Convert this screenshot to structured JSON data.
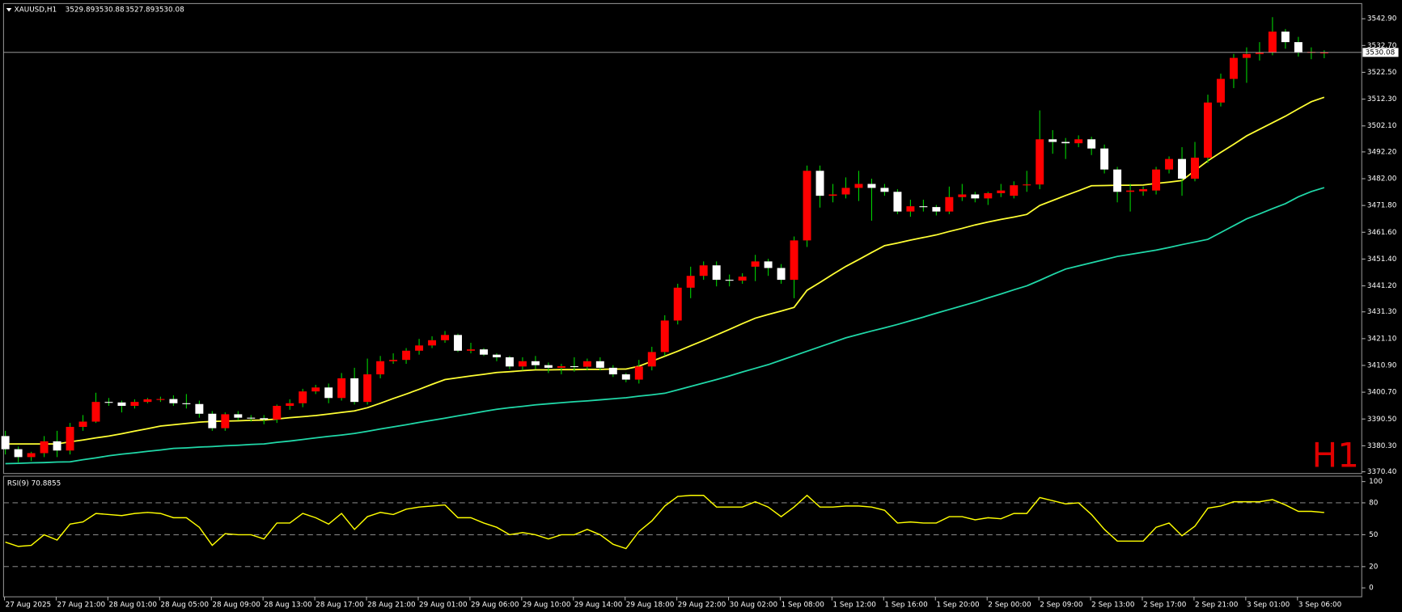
{
  "chart_data": {
    "type": "candlestick",
    "symbol": "XAUUSD,H1",
    "timeframe_label": "H1",
    "categories": [
      "27 Aug 2025",
      null,
      null,
      null,
      "27 Aug 21:00",
      null,
      null,
      null,
      "28 Aug 01:00",
      null,
      null,
      null,
      "28 Aug 05:00",
      null,
      null,
      null,
      "28 Aug 09:00",
      null,
      null,
      null,
      "28 Aug 13:00",
      null,
      null,
      null,
      "28 Aug 17:00",
      null,
      null,
      null,
      "28 Aug 21:00",
      null,
      null,
      null,
      "29 Aug 01:00",
      null,
      null,
      null,
      "29 Aug 06:00",
      null,
      null,
      null,
      "29 Aug 10:00",
      null,
      null,
      null,
      "29 Aug 14:00",
      null,
      null,
      null,
      "29 Aug 18:00",
      null,
      null,
      null,
      "29 Aug 22:00",
      null,
      null,
      null,
      "30 Aug 02:00",
      null,
      null,
      null,
      "1 Sep 08:00",
      null,
      null,
      null,
      "1 Sep 12:00",
      null,
      null,
      null,
      "1 Sep 16:00",
      null,
      null,
      null,
      "1 Sep 20:00",
      null,
      null,
      null,
      "2 Sep 00:00",
      null,
      null,
      null,
      "2 Sep 09:00",
      null,
      null,
      null,
      "2 Sep 13:00",
      null,
      null,
      null,
      "2 Sep 17:00",
      null,
      null,
      null,
      "2 Sep 21:00",
      null,
      null,
      null,
      "3 Sep 01:00",
      null,
      null,
      null,
      "3 Sep 06:00",
      null,
      null
    ],
    "open": [
      3384,
      3379,
      3376,
      3377.5,
      3382,
      3378.5,
      3387.5,
      3389.5,
      3397,
      3396.8,
      3395.5,
      3397,
      3398,
      3398.1,
      3396.5,
      3396.2,
      3392.5,
      3387,
      3392.3,
      3391,
      3390.8,
      3390.3,
      3395.5,
      3396.5,
      3401,
      3402.5,
      3398.5,
      3406,
      3397,
      3407.5,
      3412.5,
      3413,
      3416.5,
      3418.5,
      3420.5,
      3422.5,
      3416.5,
      3417,
      3415,
      3414,
      3410.5,
      3412.5,
      3411,
      3410,
      3410.6,
      3410.4,
      3412.5,
      3410,
      3407.5,
      3405.5,
      3410.5,
      3416,
      3428,
      3440.5,
      3445,
      3449,
      3443.5,
      3443.2,
      3448.5,
      3450.5,
      3448,
      3443.5,
      3458.5,
      3485,
      3475.5,
      3476,
      3478.5,
      3480,
      3478.5,
      3477,
      3469.5,
      3471.5,
      3471.2,
      3469.5,
      3475,
      3476,
      3474.5,
      3476.5,
      3475.5,
      3479.5,
      3479.8,
      3497,
      3496,
      3495.5,
      3497,
      3493.5,
      3485.5,
      3477,
      3477.2,
      3477.5,
      3485.5,
      3489.5,
      3482,
      3490,
      3511,
      3520,
      3528,
      3529.5,
      3530,
      3538,
      3534,
      3530,
      3529.89
    ],
    "high": [
      3386,
      3380,
      3378,
      3384,
      3386,
      3389,
      3392,
      3400.5,
      3398.5,
      3397.5,
      3398,
      3398.5,
      3399,
      3399.5,
      3400,
      3397.5,
      3393.5,
      3393,
      3393.5,
      3392,
      3392,
      3396,
      3398,
      3402,
      3403.5,
      3404,
      3408,
      3410,
      3413.5,
      3414.5,
      3415.5,
      3417.5,
      3421,
      3422,
      3424,
      3423,
      3419.5,
      3417.5,
      3415.5,
      3414.5,
      3414,
      3414.5,
      3412,
      3411.5,
      3414,
      3413.5,
      3414,
      3411,
      3408,
      3413,
      3418,
      3430,
      3442,
      3448.5,
      3450.5,
      3450.5,
      3445.5,
      3446,
      3453,
      3451.5,
      3449.5,
      3460,
      3487,
      3487,
      3480,
      3482.5,
      3485,
      3482,
      3480,
      3478,
      3474,
      3474,
      3472,
      3479,
      3480,
      3477,
      3477,
      3480,
      3481,
      3485,
      3508,
      3500.5,
      3497.5,
      3498.5,
      3498,
      3495,
      3486.5,
      3480,
      3479,
      3486.5,
      3490.5,
      3494,
      3496,
      3514,
      3522,
      3529.5,
      3532,
      3534,
      3543.5,
      3539,
      3536,
      3532,
      3530.88
    ],
    "low": [
      3377,
      3374,
      3374.5,
      3376,
      3376,
      3377,
      3386,
      3389,
      3395.5,
      3393,
      3394.5,
      3396.5,
      3397,
      3395.5,
      3394.5,
      3391,
      3386,
      3386,
      3390,
      3389.5,
      3388.5,
      3389,
      3394,
      3395,
      3400,
      3396.5,
      3397.5,
      3396,
      3396,
      3406,
      3411.5,
      3411.5,
      3415,
      3417.5,
      3419.5,
      3416,
      3415.5,
      3414.5,
      3412.5,
      3409.5,
      3409,
      3409.5,
      3408,
      3407.5,
      3408.5,
      3409,
      3409,
      3406.5,
      3404.5,
      3404,
      3409,
      3414.5,
      3426.5,
      3436.5,
      3443.5,
      3441,
      3441,
      3442,
      3443,
      3445,
      3442,
      3436.5,
      3456,
      3471,
      3473,
      3474.5,
      3473.5,
      3466,
      3475.5,
      3468.5,
      3467.5,
      3469.5,
      3468,
      3468.5,
      3473.5,
      3473,
      3472,
      3475,
      3474.5,
      3477,
      3478,
      3491.5,
      3489.5,
      3494,
      3491,
      3484,
      3473,
      3469.5,
      3475.5,
      3476,
      3484,
      3475.5,
      3481,
      3488,
      3509.5,
      3516.5,
      3518.5,
      3527,
      3529,
      3531.5,
      3528.5,
      3527.5,
      3527.89
    ],
    "close": [
      3379,
      3376,
      3377.5,
      3382,
      3378.5,
      3387.5,
      3389.5,
      3397,
      3396.8,
      3395.5,
      3397,
      3398,
      3398.1,
      3396.5,
      3396.2,
      3392.5,
      3387,
      3392.3,
      3391,
      3390.8,
      3390.3,
      3395.5,
      3396.5,
      3401,
      3402.5,
      3398.5,
      3406,
      3397,
      3407.5,
      3412.5,
      3413,
      3416.5,
      3418.5,
      3420.5,
      3422.5,
      3416.5,
      3417,
      3415,
      3414,
      3410.5,
      3412.5,
      3411,
      3410,
      3410.6,
      3410.4,
      3412.5,
      3410,
      3407.5,
      3405.5,
      3410.5,
      3416,
      3428,
      3440.5,
      3445,
      3449,
      3443.5,
      3443.2,
      3444.7,
      3450.5,
      3448,
      3443.5,
      3458.5,
      3485,
      3475.5,
      3476,
      3478.5,
      3480,
      3478.5,
      3477,
      3469.5,
      3471.5,
      3471.2,
      3469.5,
      3475,
      3476,
      3474.5,
      3476.5,
      3477.5,
      3479.5,
      3479.8,
      3497,
      3496,
      3495.5,
      3497,
      3493.5,
      3485.5,
      3477,
      3477.5,
      3478,
      3485.5,
      3489.5,
      3482,
      3490,
      3511,
      3520,
      3528,
      3529.5,
      3530,
      3538,
      3534,
      3530,
      3530.3,
      3530.08
    ],
    "up_color": "#ff0000",
    "down_color": "#ffffff",
    "wick_color": "#00d000",
    "ylim": [
      3369.74,
      3548.68
    ],
    "yticks": [
      {
        "value": 3542.9,
        "label": "3542.90"
      },
      {
        "value": 3532.7,
        "label": "3532.70"
      },
      {
        "value": 3522.5,
        "label": "3522.50"
      },
      {
        "value": 3512.3,
        "label": "3512.30"
      },
      {
        "value": 3502.1,
        "label": "3502.10"
      },
      {
        "value": 3492.2,
        "label": "3492.20"
      },
      {
        "value": 3482,
        "label": "3482.00"
      },
      {
        "value": 3471.8,
        "label": "3471.80"
      },
      {
        "value": 3461.6,
        "label": "3461.60"
      },
      {
        "value": 3451.4,
        "label": "3451.40"
      },
      {
        "value": 3441.2,
        "label": "3441.20"
      },
      {
        "value": 3431.3,
        "label": "3431.30"
      },
      {
        "value": 3421.1,
        "label": "3421.10"
      },
      {
        "value": 3410.9,
        "label": "3410.90"
      },
      {
        "value": 3400.7,
        "label": "3400.70"
      },
      {
        "value": 3390.5,
        "label": "3390.50"
      },
      {
        "value": 3380.3,
        "label": "3380.30"
      },
      {
        "value": 3370.4,
        "label": "3370.40"
      }
    ],
    "moving_averages": [
      {
        "color": "#ffff33",
        "values": [
          3381,
          3381,
          3381,
          3381,
          3381,
          3381.8,
          3382.5,
          3383.3,
          3384,
          3384.9,
          3385.9,
          3386.8,
          3387.8,
          3388.3,
          3388.8,
          3389.3,
          3389.6,
          3389.7,
          3389.8,
          3390,
          3390.1,
          3390.5,
          3391,
          3391.4,
          3391.8,
          3392.4,
          3393,
          3393.6,
          3394.8,
          3396.5,
          3398.3,
          3400,
          3401.8,
          3403.7,
          3405.5,
          3406.2,
          3406.9,
          3407.5,
          3408.2,
          3408.5,
          3408.9,
          3409.2,
          3409.2,
          3409.3,
          3409.3,
          3409.4,
          3409.4,
          3409.5,
          3409.5,
          3410.6,
          3412.5,
          3414.4,
          3416.3,
          3418.4,
          3420.4,
          3422.5,
          3424.6,
          3426.8,
          3428.9,
          3430.3,
          3431.6,
          3433,
          3439.5,
          3442.5,
          3445.6,
          3448.6,
          3451.2,
          3453.9,
          3456.5,
          3457.5,
          3458.6,
          3459.6,
          3460.6,
          3461.9,
          3463.1,
          3464.4,
          3465.5,
          3466.5,
          3467.4,
          3468.4,
          3471.8,
          3473.7,
          3475.6,
          3477.4,
          3479.3,
          3479.4,
          3479.5,
          3479.5,
          3479.6,
          3480.2,
          3480.7,
          3481.3,
          3485.1,
          3488.8,
          3492,
          3495.1,
          3498.3,
          3500.8,
          3503.3,
          3505.8,
          3508.6,
          3511.3,
          3513
        ]
      },
      {
        "color": "#20d8a8",
        "values": [
          3373.5,
          3373.6,
          3373.8,
          3373.9,
          3374.1,
          3374.2,
          3375,
          3375.7,
          3376.5,
          3377.1,
          3377.6,
          3378.2,
          3378.7,
          3379.3,
          3379.5,
          3379.8,
          3380,
          3380.3,
          3380.5,
          3380.8,
          3381,
          3381.6,
          3382.1,
          3382.7,
          3383.3,
          3383.9,
          3384.4,
          3385,
          3385.8,
          3386.7,
          3387.5,
          3388.3,
          3389.2,
          3390,
          3390.8,
          3391.7,
          3392.5,
          3393.4,
          3394.2,
          3394.8,
          3395.3,
          3395.9,
          3396.3,
          3396.7,
          3397.1,
          3397.4,
          3397.8,
          3398.2,
          3398.6,
          3399.2,
          3399.7,
          3400.3,
          3401.6,
          3402.9,
          3404.2,
          3405.5,
          3406.9,
          3408.4,
          3409.8,
          3411.2,
          3412.9,
          3414.6,
          3416.3,
          3418,
          3419.7,
          3421.4,
          3422.7,
          3424,
          3425.2,
          3426.5,
          3427.9,
          3429.3,
          3430.8,
          3432.2,
          3433.6,
          3435,
          3436.6,
          3438.1,
          3439.7,
          3441.2,
          3443.3,
          3445.5,
          3447.6,
          3448.8,
          3450,
          3451.2,
          3452.4,
          3453.2,
          3454,
          3454.8,
          3455.8,
          3456.9,
          3457.9,
          3458.9,
          3461.5,
          3464.1,
          3466.7,
          3468.6,
          3470.6,
          3472.5,
          3475.1,
          3477.1,
          3478.6
        ]
      }
    ],
    "indicator": {
      "type": "line",
      "name": "RSI(9)",
      "color": "#ffff00",
      "values": [
        43,
        39,
        40,
        50,
        45,
        60,
        62,
        70,
        69,
        68,
        70,
        71,
        70,
        66,
        66,
        57,
        40,
        51,
        50,
        50,
        46,
        61,
        61,
        70,
        66,
        60,
        70,
        55,
        67,
        71,
        69,
        74,
        76,
        77,
        78,
        66,
        66,
        61,
        57,
        50,
        52,
        50,
        46,
        50,
        50,
        55,
        50,
        41,
        37,
        53,
        63,
        77,
        86,
        87,
        87,
        76,
        76,
        76,
        81,
        76,
        67,
        76,
        87,
        76,
        76,
        77,
        77,
        76,
        73,
        61,
        62,
        61,
        61,
        67,
        67,
        64,
        66,
        65,
        70,
        70,
        85,
        82,
        79,
        80,
        69,
        55,
        44,
        44,
        44,
        57,
        61,
        49,
        58,
        75,
        77,
        81,
        81,
        81,
        83,
        78,
        72,
        72,
        70.8855
      ],
      "ylim": [
        -8.4,
        105.04
      ],
      "yticks": [
        100,
        80,
        50,
        20,
        0
      ],
      "levels": [
        20,
        50,
        80
      ]
    }
  }
}
